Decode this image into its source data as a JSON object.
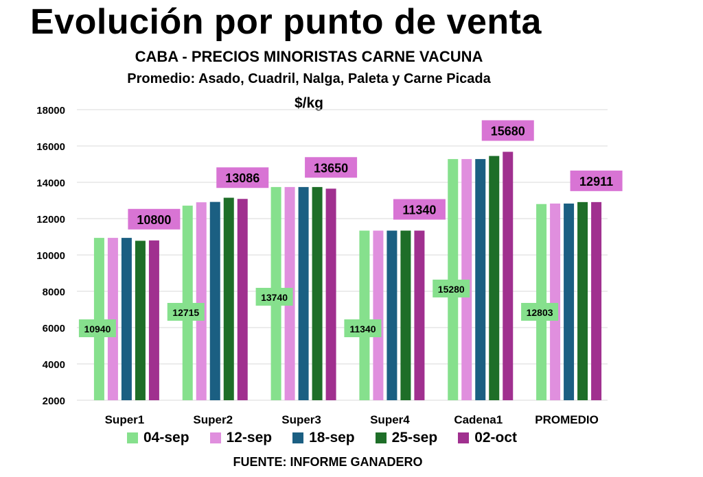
{
  "header": {
    "title": "Evolución por punto de venta",
    "subtitle": "CABA -  PRECIOS MINORISTAS CARNE VACUNA",
    "subtitle2": "Promedio: Asado, Cuadril, Nalga, Paleta y Carne Picada",
    "unit": "$/kg"
  },
  "source": "FUENTE: INFORME GANADERO",
  "colors": {
    "04-sep": "#86e08d",
    "12-sep": "#e08fde",
    "18-sep": "#1b5f82",
    "25-sep": "#1e6e28",
    "02-oct": "#a0308f",
    "label_green": "#86e08d",
    "label_pink": "#d874d4",
    "grid": "#d9d9d9"
  },
  "chart_data": {
    "type": "bar",
    "categories": [
      "Super1",
      "Super2",
      "Super3",
      "Super4",
      "Cadena1",
      "PROMEDIO"
    ],
    "series": [
      {
        "name": "04-sep",
        "values": [
          10940,
          12715,
          13740,
          11340,
          15280,
          12803
        ]
      },
      {
        "name": "12-sep",
        "values": [
          10940,
          12900,
          13740,
          11340,
          15280,
          12830
        ]
      },
      {
        "name": "18-sep",
        "values": [
          10940,
          12920,
          13740,
          11340,
          15280,
          12830
        ]
      },
      {
        "name": "25-sep",
        "values": [
          10780,
          13150,
          13740,
          11340,
          15450,
          12911
        ]
      },
      {
        "name": "02-oct",
        "values": [
          10800,
          13086,
          13650,
          11340,
          15680,
          12911
        ]
      }
    ],
    "data_labels": {
      "first_series": [
        "10940",
        "12715",
        "13740",
        "11340",
        "15280",
        "12803"
      ],
      "last_series": [
        "10800",
        "13086",
        "13650",
        "11340",
        "15680",
        "12911"
      ]
    },
    "ylim": [
      2000,
      18000
    ],
    "yticks": [
      "2000",
      "4000",
      "6000",
      "8000",
      "10000",
      "12000",
      "14000",
      "16000",
      "18000"
    ],
    "title": "Evolución por punto de venta",
    "xlabel": "",
    "ylabel": "$/kg",
    "legend_position": "bottom",
    "grid": true
  }
}
